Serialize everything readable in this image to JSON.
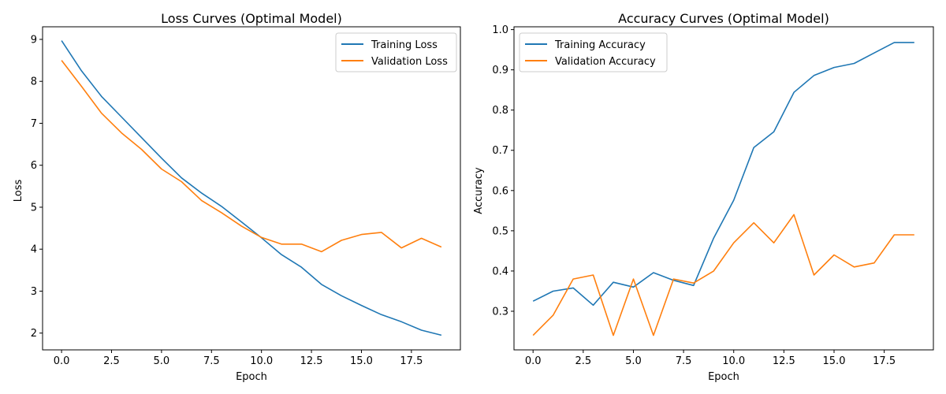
{
  "colors": {
    "training": "#1f77b4",
    "validation": "#ff7f0e"
  },
  "chart_data": [
    {
      "type": "line",
      "title": "Loss Curves (Optimal Model)",
      "xlabel": "Epoch",
      "ylabel": "Loss",
      "xlim": [
        -0.95,
        19.95
      ],
      "ylim": [
        1.6,
        9.3
      ],
      "xticks": [
        0,
        2.5,
        5,
        7.5,
        10,
        12.5,
        15,
        17.5
      ],
      "xtick_labels": [
        "0.0",
        "2.5",
        "5.0",
        "7.5",
        "10.0",
        "12.5",
        "15.0",
        "17.5"
      ],
      "yticks": [
        2,
        3,
        4,
        5,
        6,
        7,
        8,
        9
      ],
      "ytick_labels": [
        "2",
        "3",
        "4",
        "5",
        "6",
        "7",
        "8",
        "9"
      ],
      "grid": false,
      "legend": "upper right",
      "x": [
        0,
        1,
        2,
        3,
        4,
        5,
        6,
        7,
        8,
        9,
        10,
        11,
        12,
        13,
        14,
        15,
        16,
        17,
        18,
        19
      ],
      "series": [
        {
          "name": "Training Loss",
          "color_key": "training",
          "values": [
            8.97,
            8.25,
            7.64,
            7.15,
            6.66,
            6.17,
            5.7,
            5.34,
            5.02,
            4.65,
            4.27,
            3.87,
            3.57,
            3.16,
            2.89,
            2.66,
            2.44,
            2.27,
            2.07,
            1.95
          ]
        },
        {
          "name": "Validation Loss",
          "color_key": "validation",
          "values": [
            8.5,
            7.88,
            7.24,
            6.77,
            6.38,
            5.91,
            5.61,
            5.16,
            4.87,
            4.55,
            4.28,
            4.12,
            4.12,
            3.94,
            4.21,
            4.35,
            4.4,
            4.03,
            4.26,
            4.05
          ]
        }
      ]
    },
    {
      "type": "line",
      "title": "Accuracy Curves (Optimal Model)",
      "xlabel": "Epoch",
      "ylabel": "Accuracy",
      "xlim": [
        -0.95,
        19.95
      ],
      "ylim": [
        0.204,
        1.007
      ],
      "xticks": [
        0,
        2.5,
        5,
        7.5,
        10,
        12.5,
        15,
        17.5
      ],
      "xtick_labels": [
        "0.0",
        "2.5",
        "5.0",
        "7.5",
        "10.0",
        "12.5",
        "15.0",
        "17.5"
      ],
      "yticks": [
        0.3,
        0.4,
        0.5,
        0.6,
        0.7,
        0.8,
        0.9,
        1.0
      ],
      "ytick_labels": [
        "0.3",
        "0.4",
        "0.5",
        "0.6",
        "0.7",
        "0.8",
        "0.9",
        "1.0"
      ],
      "grid": false,
      "legend": "upper left",
      "x": [
        0,
        1,
        2,
        3,
        4,
        5,
        6,
        7,
        8,
        9,
        10,
        11,
        12,
        13,
        14,
        15,
        16,
        17,
        18,
        19
      ],
      "series": [
        {
          "name": "Training Accuracy",
          "color_key": "training",
          "values": [
            0.325,
            0.35,
            0.358,
            0.315,
            0.372,
            0.36,
            0.396,
            0.377,
            0.364,
            0.482,
            0.576,
            0.707,
            0.746,
            0.844,
            0.886,
            0.906,
            0.916,
            0.942,
            0.968,
            0.968
          ]
        },
        {
          "name": "Validation Accuracy",
          "color_key": "validation",
          "values": [
            0.24,
            0.29,
            0.38,
            0.39,
            0.24,
            0.38,
            0.24,
            0.38,
            0.37,
            0.4,
            0.47,
            0.52,
            0.47,
            0.54,
            0.39,
            0.44,
            0.41,
            0.42,
            0.49,
            0.49
          ]
        }
      ]
    }
  ]
}
